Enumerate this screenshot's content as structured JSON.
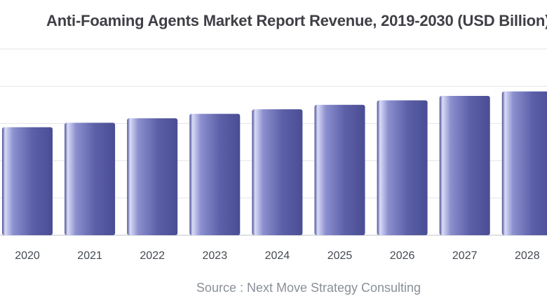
{
  "chart_data": {
    "type": "bar",
    "title": "Anti-Foaming Agents Market Report Revenue, 2019-2030 (USD Billion)",
    "categories": [
      "2020",
      "2021",
      "2022",
      "2023",
      "2024",
      "2025",
      "2026",
      "2027",
      "2028"
    ],
    "values": [
      1.45,
      1.51,
      1.57,
      1.63,
      1.69,
      1.75,
      1.81,
      1.87,
      1.93
    ],
    "xlabel": "",
    "ylabel": "",
    "ylim": [
      0,
      2.5
    ],
    "grid": true,
    "legend": "none",
    "bar_color": "#5b5fa6",
    "bar_highlight": "#c9cbf0",
    "source": "Source : Next Move Strategy Consulting"
  }
}
